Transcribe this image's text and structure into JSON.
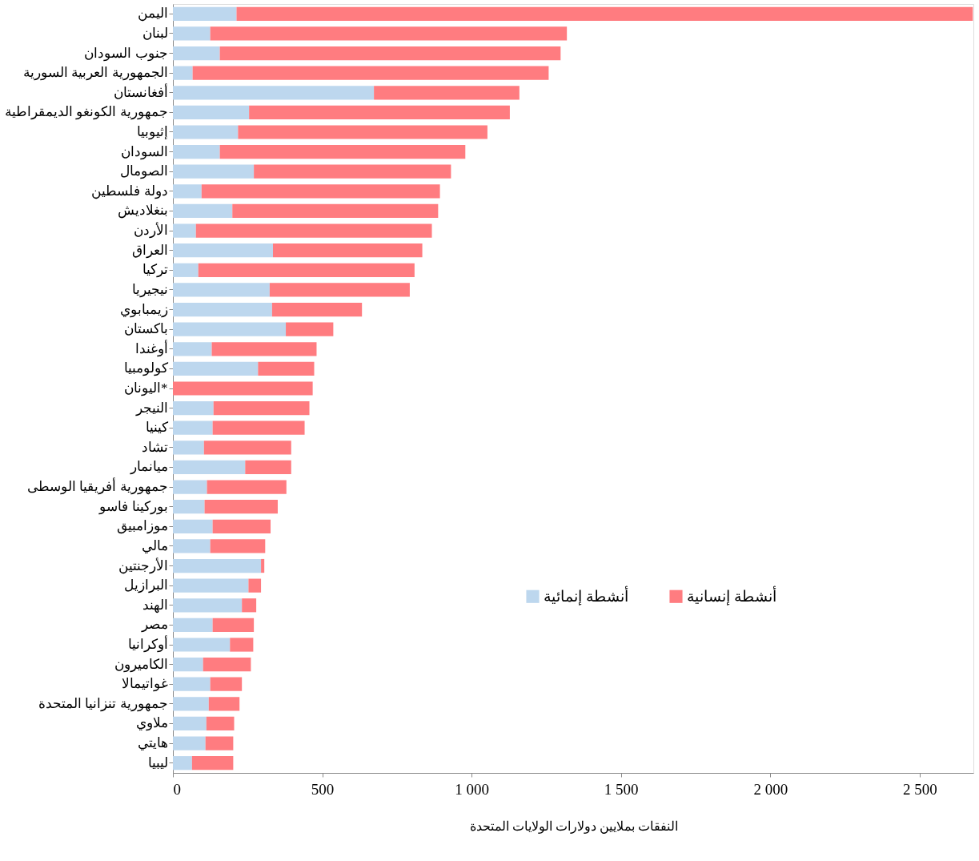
{
  "chart_data": {
    "type": "bar",
    "orientation": "horizontal",
    "stacked": true,
    "categories": [
      "اليمن",
      "لبنان",
      "جنوب السودان",
      "الجمهورية العربية السورية",
      "أفغانستان",
      "جمهورية الكونغو الديمقراطية",
      "إثيوبيا",
      "السودان",
      "الصومال",
      "دولة فلسطين",
      "بنغلاديش",
      "الأردن",
      "العراق",
      "تركيا",
      "نيجيريا",
      "زيمبابوي",
      "باكستان",
      "أوغندا",
      "كولومبيا",
      "اليونان*",
      "النيجر",
      "كينيا",
      "تشاد",
      "ميانمار",
      "جمهورية أفريقيا الوسطى",
      "بوركينا فاسو",
      "موزامبيق",
      "مالي",
      "الأرجنتين",
      "البرازيل",
      "الهند",
      "مصر",
      "أوكرانيا",
      "الكاميرون",
      "غواتيمالا",
      "جمهورية تنزانيا المتحدة",
      "ملاوي",
      "هايتي",
      "ليبيا"
    ],
    "series": [
      {
        "name": "أنشطة إنمائية",
        "color": "#bdd7ee",
        "values": [
          213,
          125,
          157,
          66,
          673,
          255,
          218,
          157,
          271,
          96,
          199,
          77,
          335,
          85,
          324,
          332,
          378,
          130,
          285,
          0,
          136,
          133,
          104,
          242,
          114,
          106,
          133,
          125,
          295,
          253,
          231,
          133,
          191,
          101,
          125,
          120,
          112,
          109,
          64
        ]
      },
      {
        "name": "أنشطة إنسانية",
        "color": "#ff7c80",
        "values": [
          2465,
          1194,
          1141,
          1192,
          487,
          873,
          835,
          822,
          660,
          798,
          689,
          790,
          500,
          724,
          469,
          301,
          159,
          351,
          188,
          468,
          321,
          308,
          292,
          154,
          266,
          245,
          194,
          184,
          11,
          42,
          48,
          138,
          78,
          160,
          106,
          103,
          93,
          93,
          138
        ]
      }
    ],
    "xlim": [
      0,
      2680
    ],
    "xticks": [
      0,
      500,
      {
        "value": 1000,
        "label": "1 000"
      },
      {
        "value": 1500,
        "label": "1 500"
      },
      {
        "value": 2000,
        "label": "2 000"
      },
      {
        "value": 2500,
        "label": "2 500"
      }
    ],
    "xlabel": "النفقات بملايين دولارات الولايات المتحدة",
    "grid": false,
    "legend": "right"
  }
}
